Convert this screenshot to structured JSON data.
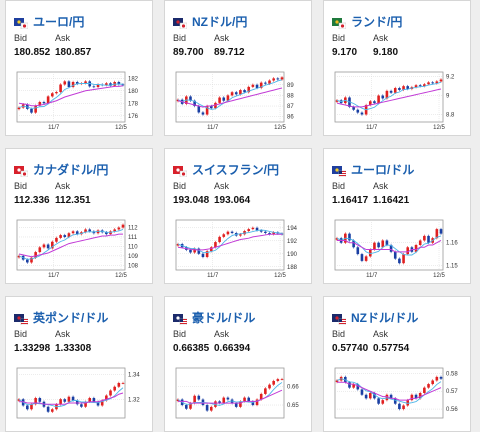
{
  "labels": {
    "bid": "Bid",
    "ask": "Ask"
  },
  "colors": {
    "title": "#1b5fae",
    "up": "#e02020",
    "down": "#1a3fa3",
    "ma_short": "#4db6e8",
    "ma_long": "#c23bd6"
  },
  "cards": [
    {
      "id": "eur-jpy",
      "flag": "eu-jp-flag",
      "title": "ユーロ/円",
      "bid": "180.852",
      "ask": "180.857",
      "chart_data": {
        "type": "candlestick",
        "yticks": [
          "182",
          "180",
          "178",
          "176"
        ],
        "ylim": [
          175,
          183
        ],
        "xticks": [
          "11/7",
          "12/5"
        ],
        "closes": [
          177.3,
          177.8,
          177.1,
          176.5,
          177.6,
          178.2,
          178.0,
          179.1,
          179.6,
          179.8,
          181.0,
          181.5,
          180.6,
          181.4,
          181.1,
          181.2,
          181.5,
          180.7,
          180.6,
          181.0,
          180.9,
          181.2,
          180.8,
          181.4,
          181.0,
          180.9
        ],
        "ma_long": [
          178.0,
          177.9,
          177.8,
          177.6,
          177.6,
          177.7,
          177.8,
          178.0,
          178.2,
          178.4,
          178.7,
          179.0,
          179.2,
          179.4,
          179.6,
          179.8,
          180.0,
          180.1,
          180.2,
          180.3,
          180.4,
          180.5,
          180.6,
          180.7,
          180.7,
          180.8
        ]
      }
    },
    {
      "id": "nzd-jpy",
      "flag": "nz-jp-flag",
      "title": "NZドル/円",
      "bid": "89.700",
      "ask": "89.712",
      "chart_data": {
        "type": "candlestick",
        "yticks": [
          "89",
          "88",
          "87",
          "86"
        ],
        "ylim": [
          85.5,
          90.2
        ],
        "xticks": [
          "11/7",
          "12/5"
        ],
        "closes": [
          87.6,
          87.2,
          87.9,
          87.5,
          87.0,
          86.4,
          86.2,
          87.0,
          86.8,
          87.3,
          87.8,
          87.5,
          88.0,
          88.3,
          88.1,
          88.5,
          88.3,
          88.8,
          89.0,
          88.7,
          89.2,
          89.1,
          89.4,
          89.6,
          89.5,
          89.7
        ],
        "ma_long": [
          87.5,
          87.4,
          87.3,
          87.2,
          87.1,
          87.0,
          86.9,
          87.0,
          87.0,
          87.1,
          87.2,
          87.3,
          87.4,
          87.5,
          87.6,
          87.7,
          87.8,
          87.9,
          88.0,
          88.1,
          88.2,
          88.3,
          88.4,
          88.5,
          88.6,
          88.7
        ]
      }
    },
    {
      "id": "zar-jpy",
      "flag": "za-jp-flag",
      "title": "ランド/円",
      "bid": "9.170",
      "ask": "9.180",
      "chart_data": {
        "type": "candlestick",
        "yticks": [
          "9.2",
          "9",
          "8.8"
        ],
        "ylim": [
          8.72,
          9.25
        ],
        "xticks": [
          "11/7",
          "12/5"
        ],
        "closes": [
          8.95,
          8.92,
          8.98,
          8.88,
          8.85,
          8.82,
          8.8,
          8.9,
          8.94,
          8.92,
          9.0,
          8.97,
          9.05,
          9.03,
          9.08,
          9.06,
          9.1,
          9.07,
          9.09,
          9.11,
          9.1,
          9.12,
          9.14,
          9.13,
          9.15,
          9.17
        ],
        "ma_long": [
          8.92,
          8.91,
          8.9,
          8.89,
          8.88,
          8.88,
          8.88,
          8.89,
          8.9,
          8.91,
          8.92,
          8.93,
          8.94,
          8.95,
          8.96,
          8.97,
          8.98,
          8.99,
          9.0,
          9.01,
          9.02,
          9.03,
          9.04,
          9.05,
          9.06,
          9.07
        ]
      }
    },
    {
      "id": "cad-jpy",
      "flag": "ca-jp-flag",
      "title": "カナダドル/円",
      "bid": "112.336",
      "ask": "112.351",
      "chart_data": {
        "type": "candlestick",
        "yticks": [
          "112",
          "111",
          "110",
          "109",
          "108"
        ],
        "ylim": [
          107.5,
          112.8
        ],
        "xticks": [
          "11/7",
          "12/5"
        ],
        "closes": [
          109.0,
          108.6,
          108.3,
          108.8,
          109.4,
          109.9,
          110.2,
          109.8,
          110.5,
          110.9,
          111.2,
          111.0,
          111.4,
          111.6,
          111.3,
          111.5,
          111.8,
          111.6,
          111.4,
          111.7,
          111.5,
          111.3,
          111.6,
          111.8,
          112.0,
          112.3
        ],
        "ma_long": [
          109.2,
          109.1,
          109.0,
          108.9,
          109.0,
          109.1,
          109.2,
          109.3,
          109.5,
          109.7,
          109.9,
          110.1,
          110.3,
          110.4,
          110.5,
          110.6,
          110.7,
          110.8,
          110.9,
          111.0,
          111.1,
          111.1,
          111.2,
          111.2,
          111.3,
          111.3
        ]
      }
    },
    {
      "id": "chf-jpy",
      "flag": "ch-jp-flag",
      "title": "スイスフラン/円",
      "bid": "193.048",
      "ask": "193.064",
      "chart_data": {
        "type": "candlestick",
        "yticks": [
          "194",
          "192",
          "190",
          "188"
        ],
        "ylim": [
          187.5,
          195.2
        ],
        "xticks": [
          "11/7",
          "12/5"
        ],
        "closes": [
          191.5,
          191.0,
          190.6,
          190.2,
          190.8,
          190.0,
          189.5,
          190.4,
          191.0,
          191.8,
          192.6,
          193.0,
          193.4,
          193.2,
          192.8,
          193.0,
          193.5,
          193.8,
          194.0,
          193.6,
          193.4,
          193.2,
          193.0,
          193.3,
          193.1,
          193.0
        ],
        "ma_long": [
          191.0,
          190.9,
          190.8,
          190.7,
          190.6,
          190.6,
          190.6,
          190.7,
          190.8,
          191.0,
          191.2,
          191.4,
          191.6,
          191.8,
          192.0,
          192.2,
          192.3,
          192.4,
          192.6,
          192.7,
          192.8,
          192.9,
          193.0,
          193.0,
          193.0,
          193.0
        ]
      }
    },
    {
      "id": "eur-usd",
      "flag": "eu-us-flag",
      "title": "ユーロ/ドル",
      "bid": "1.16417",
      "ask": "1.16421",
      "chart_data": {
        "type": "candlestick",
        "yticks": [
          "1.16",
          "1.15"
        ],
        "ylim": [
          1.148,
          1.17
        ],
        "xticks": [
          "11/7",
          "12/5"
        ],
        "closes": [
          1.162,
          1.16,
          1.164,
          1.161,
          1.158,
          1.155,
          1.152,
          1.154,
          1.157,
          1.16,
          1.158,
          1.161,
          1.159,
          1.156,
          1.153,
          1.151,
          1.155,
          1.158,
          1.156,
          1.159,
          1.161,
          1.163,
          1.16,
          1.162,
          1.166,
          1.164
        ],
        "ma_long": [
          1.161,
          1.161,
          1.161,
          1.16,
          1.16,
          1.159,
          1.158,
          1.157,
          1.157,
          1.157,
          1.157,
          1.157,
          1.157,
          1.157,
          1.156,
          1.156,
          1.156,
          1.156,
          1.157,
          1.157,
          1.158,
          1.158,
          1.159,
          1.159,
          1.16,
          1.161
        ]
      }
    },
    {
      "id": "gbp-usd",
      "flag": "gb-us-flag",
      "title": "英ポンド/ドル",
      "bid": "1.33298",
      "ask": "1.33308",
      "chart_data": {
        "type": "candlestick",
        "yticks": [
          "1.34",
          "1.32"
        ],
        "ylim": [
          1.305,
          1.345
        ],
        "xticks": [],
        "closes": [
          1.32,
          1.315,
          1.312,
          1.316,
          1.321,
          1.318,
          1.314,
          1.31,
          1.312,
          1.316,
          1.32,
          1.318,
          1.322,
          1.319,
          1.316,
          1.314,
          1.318,
          1.321,
          1.318,
          1.315,
          1.319,
          1.323,
          1.327,
          1.33,
          1.333,
          1.333
        ],
        "ma_long": [
          1.318,
          1.318,
          1.317,
          1.317,
          1.317,
          1.317,
          1.316,
          1.316,
          1.316,
          1.316,
          1.316,
          1.316,
          1.317,
          1.317,
          1.317,
          1.317,
          1.317,
          1.318,
          1.318,
          1.318,
          1.319,
          1.32,
          1.321,
          1.322,
          1.324,
          1.325
        ]
      }
    },
    {
      "id": "aud-usd",
      "flag": "au-us-flag",
      "title": "豪ドル/ドル",
      "bid": "0.66385",
      "ask": "0.66394",
      "chart_data": {
        "type": "candlestick",
        "yticks": [
          "0.66",
          "0.65"
        ],
        "ylim": [
          0.643,
          0.67
        ],
        "xticks": [],
        "closes": [
          0.653,
          0.65,
          0.648,
          0.651,
          0.655,
          0.653,
          0.65,
          0.647,
          0.649,
          0.652,
          0.651,
          0.654,
          0.653,
          0.651,
          0.649,
          0.652,
          0.654,
          0.652,
          0.65,
          0.653,
          0.656,
          0.659,
          0.661,
          0.663,
          0.664,
          0.664
        ],
        "ma_long": [
          0.652,
          0.652,
          0.652,
          0.651,
          0.651,
          0.651,
          0.651,
          0.651,
          0.651,
          0.651,
          0.651,
          0.651,
          0.651,
          0.651,
          0.651,
          0.651,
          0.652,
          0.652,
          0.652,
          0.652,
          0.653,
          0.654,
          0.655,
          0.656,
          0.657,
          0.658
        ]
      }
    },
    {
      "id": "nzd-usd",
      "flag": "nz-us-flag",
      "title": "NZドル/ドル",
      "bid": "0.57740",
      "ask": "0.57754",
      "chart_data": {
        "type": "candlestick",
        "yticks": [
          "0.58",
          "0.57",
          "0.56"
        ],
        "ylim": [
          0.555,
          0.583
        ],
        "xticks": [],
        "closes": [
          0.576,
          0.578,
          0.575,
          0.572,
          0.574,
          0.571,
          0.568,
          0.566,
          0.569,
          0.566,
          0.563,
          0.565,
          0.568,
          0.566,
          0.563,
          0.56,
          0.562,
          0.565,
          0.568,
          0.566,
          0.569,
          0.572,
          0.574,
          0.576,
          0.578,
          0.577
        ],
        "ma_long": [
          0.575,
          0.575,
          0.575,
          0.574,
          0.574,
          0.573,
          0.572,
          0.571,
          0.57,
          0.569,
          0.568,
          0.567,
          0.567,
          0.566,
          0.566,
          0.565,
          0.565,
          0.565,
          0.566,
          0.566,
          0.567,
          0.568,
          0.569,
          0.57,
          0.571,
          0.572
        ]
      }
    }
  ]
}
